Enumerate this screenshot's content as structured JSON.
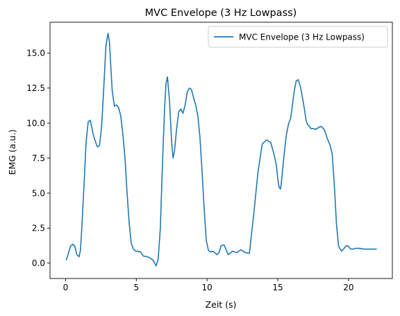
{
  "chart_data": {
    "type": "line",
    "title": "MVC Envelope (3 Hz Lowpass)",
    "xlabel": "Zeit (s)",
    "ylabel": "EMG (a.u.)",
    "xlim": [
      -1.1,
      23.1
    ],
    "ylim": [
      -1.1,
      17.2
    ],
    "xticks": [
      0,
      5,
      10,
      15,
      20
    ],
    "xtick_labels": [
      "0",
      "5",
      "10",
      "15",
      "20"
    ],
    "yticks": [
      0.0,
      2.5,
      5.0,
      7.5,
      10.0,
      12.5,
      15.0
    ],
    "ytick_labels": [
      "0.0",
      "2.5",
      "5.0",
      "7.5",
      "10.0",
      "12.5",
      "15.0"
    ],
    "grid": false,
    "legend_position": "top-right",
    "series": [
      {
        "name": "MVC Envelope (3 Hz Lowpass)",
        "color": "#1f77b4",
        "x": [
          0.05,
          0.2,
          0.35,
          0.5,
          0.65,
          0.8,
          0.95,
          1.05,
          1.15,
          1.3,
          1.45,
          1.6,
          1.75,
          1.85,
          1.95,
          2.1,
          2.25,
          2.4,
          2.55,
          2.7,
          2.85,
          3.0,
          3.1,
          3.2,
          3.3,
          3.45,
          3.6,
          3.75,
          3.9,
          4.05,
          4.2,
          4.35,
          4.5,
          4.65,
          4.8,
          4.95,
          5.1,
          5.3,
          5.5,
          5.8,
          6.0,
          6.2,
          6.4,
          6.55,
          6.7,
          6.8,
          6.9,
          7.0,
          7.1,
          7.2,
          7.35,
          7.5,
          7.6,
          7.7,
          7.85,
          8.0,
          8.15,
          8.3,
          8.45,
          8.6,
          8.75,
          8.9,
          9.05,
          9.2,
          9.35,
          9.5,
          9.65,
          9.8,
          9.95,
          10.1,
          10.25,
          10.4,
          10.55,
          10.7,
          10.85,
          11.0,
          11.2,
          11.5,
          11.8,
          12.1,
          12.4,
          12.7,
          13.0,
          13.3,
          13.6,
          13.9,
          14.2,
          14.5,
          14.7,
          14.9,
          15.0,
          15.1,
          15.2,
          15.3,
          15.45,
          15.6,
          15.75,
          15.9,
          16.0,
          16.15,
          16.3,
          16.45,
          16.6,
          16.75,
          16.9,
          17.0,
          17.1,
          17.2,
          17.35,
          17.5,
          17.7,
          17.9,
          18.1,
          18.3,
          18.5,
          18.7,
          18.85,
          19.0,
          19.15,
          19.3,
          19.5,
          19.65,
          19.8,
          19.9,
          20.0,
          20.1,
          20.2,
          20.3,
          20.5,
          20.8,
          21.1,
          21.4,
          21.7,
          22.0
        ],
        "y": [
          0.2,
          0.7,
          1.2,
          1.35,
          1.2,
          0.6,
          0.45,
          0.9,
          2.5,
          5.5,
          8.6,
          10.1,
          10.2,
          9.7,
          9.2,
          8.7,
          8.3,
          8.4,
          9.8,
          12.5,
          15.5,
          16.4,
          15.8,
          14.0,
          12.3,
          11.2,
          11.3,
          11.1,
          10.5,
          9.2,
          7.5,
          5.0,
          2.8,
          1.4,
          1.0,
          0.85,
          0.85,
          0.8,
          0.5,
          0.45,
          0.35,
          0.2,
          -0.2,
          0.3,
          2.5,
          5.5,
          8.5,
          11.0,
          12.8,
          13.3,
          11.6,
          8.6,
          7.5,
          8.0,
          9.6,
          10.8,
          11.0,
          10.7,
          11.3,
          12.2,
          12.5,
          12.4,
          11.8,
          11.3,
          10.5,
          9.0,
          6.5,
          3.8,
          1.6,
          0.9,
          0.8,
          0.85,
          0.75,
          0.6,
          0.75,
          1.25,
          1.3,
          0.6,
          0.85,
          0.75,
          0.95,
          0.75,
          0.7,
          3.5,
          6.5,
          8.5,
          8.8,
          8.6,
          7.9,
          7.0,
          6.0,
          5.4,
          5.3,
          6.2,
          7.8,
          9.1,
          9.9,
          10.3,
          11.0,
          12.2,
          13.0,
          13.1,
          12.6,
          11.8,
          10.9,
          10.2,
          9.9,
          9.8,
          9.6,
          9.6,
          9.55,
          9.7,
          9.75,
          9.5,
          8.9,
          8.4,
          7.8,
          5.5,
          2.8,
          1.2,
          0.85,
          1.0,
          1.2,
          1.25,
          1.2,
          1.05,
          1.0,
          1.0,
          1.05,
          1.05,
          1.0,
          1.0,
          1.0,
          1.0
        ]
      }
    ]
  }
}
